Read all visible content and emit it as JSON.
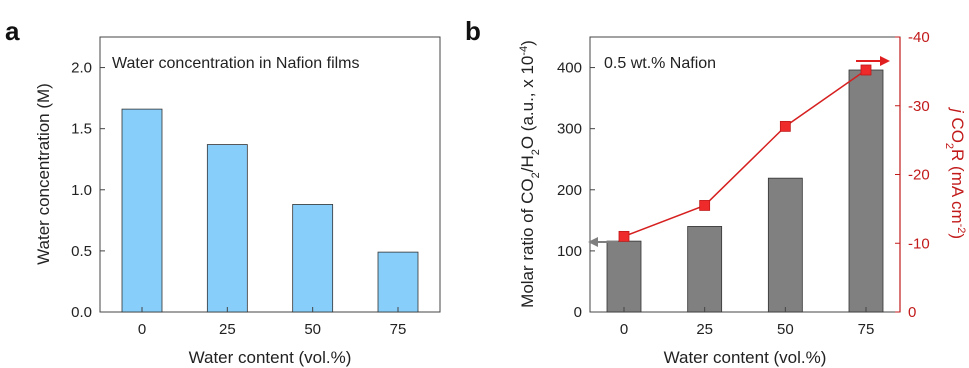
{
  "chart_data": [
    {
      "panel": "a",
      "type": "bar",
      "annotation": "Water concentration in Nafion films",
      "categories": [
        "0",
        "25",
        "50",
        "75"
      ],
      "values": [
        1.66,
        1.37,
        0.88,
        0.49
      ],
      "xlabel": "Water content (vol.%)",
      "ylabel": "Water concentration (M)",
      "ylim": [
        0,
        2.25
      ],
      "yticks": [
        0.0,
        0.5,
        1.0,
        1.5,
        2.0
      ],
      "ytick_labels": [
        "0.0",
        "0.5",
        "1.0",
        "1.5",
        "2.0"
      ],
      "bar_color": "#87cefa",
      "grid": false
    },
    {
      "panel": "b",
      "type": "bar+line",
      "annotation": "0.5 wt.% Nafion",
      "categories": [
        "0",
        "25",
        "50",
        "75"
      ],
      "xlabel": "Water content (vol.%)",
      "ylabel_left": {
        "prefix": "Molar ratio of CO",
        "s1": "2",
        "mid": "/H",
        "s2": "2",
        "suffix": "O (a.u., x 10",
        "sup": "-4",
        "end": ")"
      },
      "ylabel_right": {
        "italic": "j",
        "a": " CO",
        "sub": "2",
        "b": "R (mA cm",
        "sup": "-2",
        "c": ")"
      },
      "bars": {
        "values": [
          116,
          140,
          219,
          396
        ],
        "color": "#808080"
      },
      "line": {
        "values": [
          -11,
          -15.5,
          -27,
          -35.2
        ],
        "color": "#d62020"
      },
      "ylim_left": [
        0,
        450
      ],
      "yticks_left": [
        "0",
        "100",
        "200",
        "300",
        "400"
      ],
      "ylim_right": [
        0,
        -40
      ],
      "yticks_right": [
        "0",
        "-10",
        "-20",
        "-30",
        "-40"
      ],
      "left_arrow_color": "#7f7f7f",
      "right_arrow_color": "#e02020",
      "grid": false
    }
  ]
}
